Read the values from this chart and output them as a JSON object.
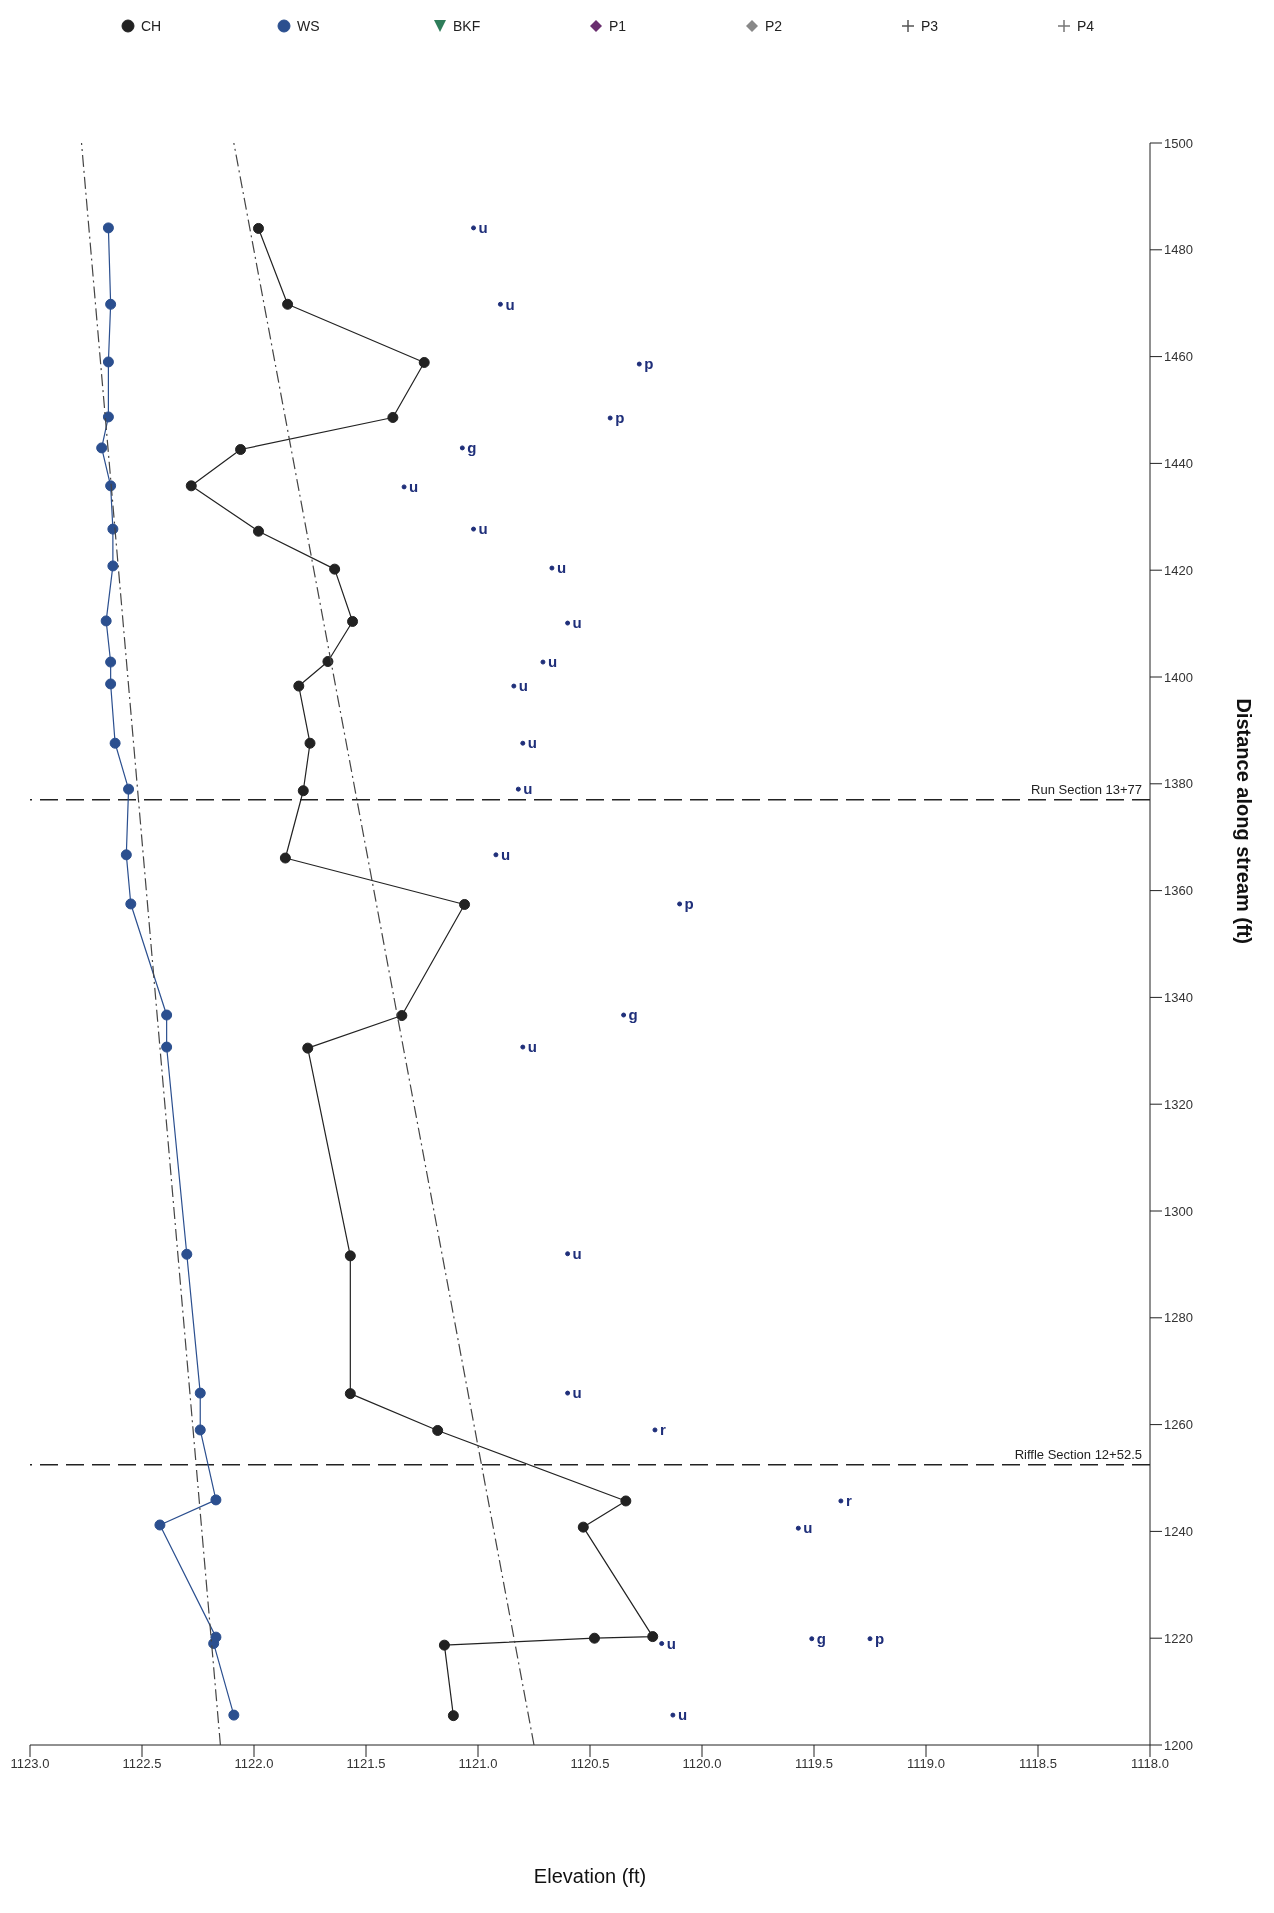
{
  "chart_data": {
    "type": "line",
    "xlabel": "Elevation (ft)",
    "ylabel": "Distance along stream (ft)",
    "xlim": [
      1123,
      1118
    ],
    "xticks": [
      {
        "value": 1123,
        "label": "1123.0"
      },
      {
        "value": 1122.5,
        "label": "1122.5"
      },
      {
        "value": 1122,
        "label": "1122.0"
      },
      {
        "value": 1121.5,
        "label": "1121.5"
      },
      {
        "value": 1121,
        "label": "1121.0"
      },
      {
        "value": 1120.5,
        "label": "1120.5"
      },
      {
        "value": 1120,
        "label": "1120.0"
      },
      {
        "value": 1119.5,
        "label": "1119.5"
      },
      {
        "value": 1119,
        "label": "1119.0"
      },
      {
        "value": 1118.5,
        "label": "1118.5"
      },
      {
        "value": 1118,
        "label": "1118.0"
      }
    ],
    "ylim": [
      1200,
      1500
    ],
    "yticks": [
      1200,
      1220,
      1240,
      1260,
      1280,
      1300,
      1320,
      1340,
      1360,
      1380,
      1400,
      1420,
      1440,
      1460,
      1480,
      1500
    ],
    "legend": "top",
    "series": [
      {
        "name": "CH",
        "color": "#222222",
        "marker": "circle",
        "line_style": "solid",
        "values": [
          1205.5,
          1218.7,
          1220,
          1220.3,
          1240.8,
          1245.7,
          1258.9,
          1265.8,
          1291.6,
          1330.5,
          1336.6,
          1357.4,
          1366.1,
          1378.7,
          1387.6,
          1398.3,
          1402.9,
          1410.4,
          1420.2,
          1427.3,
          1435.8,
          1442.6,
          1448.6,
          1458.9,
          1469.8,
          1484
        ],
        "x": [
          1121.11,
          1121.15,
          1120.48,
          1120.22,
          1120.53,
          1120.34,
          1121.18,
          1121.57,
          1121.57,
          1121.76,
          1121.34,
          1121.06,
          1121.86,
          1121.78,
          1121.75,
          1121.8,
          1121.67,
          1121.56,
          1121.64,
          1121.98,
          1122.28,
          1122.06,
          1121.38,
          1121.24,
          1121.85,
          1121.98
        ]
      },
      {
        "name": "WS",
        "color": "#2b4f8f",
        "marker": "circle",
        "line_style": "solid",
        "values": [
          1205.6,
          1219,
          1220.2,
          1241.2,
          1245.9,
          1259,
          1265.9,
          1291.9,
          1330.7,
          1336.7,
          1357.5,
          1366.7,
          1379,
          1387.6,
          1398.7,
          1402.8,
          1410.5,
          1420.8,
          1427.7,
          1435.8,
          1442.9,
          1448.7,
          1459,
          1469.8,
          1484.1
        ],
        "x": [
          1122.09,
          1122.18,
          1122.17,
          1122.42,
          1122.17,
          1122.24,
          1122.24,
          1122.3,
          1122.39,
          1122.39,
          1122.55,
          1122.57,
          1122.56,
          1122.62,
          1122.64,
          1122.64,
          1122.66,
          1122.63,
          1122.63,
          1122.64,
          1122.68,
          1122.65,
          1122.65,
          1122.64,
          1122.65
        ]
      },
      {
        "name": "BKF",
        "color": "#2e7d5a",
        "marker": "triangle"
      },
      {
        "name": "P1",
        "color": "#6a2f6f",
        "marker": "diamond"
      },
      {
        "name": "P2",
        "color": "#888888",
        "marker": "diamond"
      },
      {
        "name": "P3",
        "color": "#555555",
        "marker": "cross"
      },
      {
        "name": "P4",
        "color": "#777777",
        "marker": "cross"
      },
      {
        "color": "#444444",
        "marker": "none",
        "line_style": "dashed",
        "values": [
          1200,
          1500
        ],
        "x": [
          1122.15,
          1122.77
        ]
      },
      {
        "color": "#444444",
        "marker": "none",
        "line_style": "dashed",
        "values": [
          1200,
          1500
        ],
        "x": [
          1120.75,
          1122.09
        ]
      },
      {
        "type": "scatter",
        "color": "#1f2f7a",
        "marker": "circle",
        "values": [
          1205.6,
          1219,
          1219.9,
          1219.9,
          1240.6,
          1245.7,
          1259,
          1265.9,
          1292,
          1330.7,
          1336.7,
          1357.5,
          1366.7,
          1379,
          1387.6,
          1398.3,
          1402.8,
          1410.1,
          1420.4,
          1427.7,
          1435.6,
          1442.9,
          1448.5,
          1458.6,
          1469.8,
          1484.1
        ],
        "x": [
          1120.13,
          1120.18,
          1119.51,
          1119.25,
          1119.57,
          1119.38,
          1120.21,
          1120.6,
          1120.6,
          1120.8,
          1120.35,
          1120.1,
          1120.92,
          1120.82,
          1120.8,
          1120.84,
          1120.71,
          1120.6,
          1120.67,
          1121.02,
          1121.33,
          1121.07,
          1120.41,
          1120.28,
          1120.9,
          1121.02
        ],
        "value_labels": [
          "u",
          "u",
          "g",
          "p",
          "u",
          "r",
          "r",
          "u",
          "u",
          "u",
          "g",
          "p",
          "u",
          "u",
          "u",
          "u",
          "u",
          "u",
          "u",
          "u",
          "u",
          "g",
          "p",
          "p",
          "u",
          "u"
        ]
      }
    ],
    "ref_lines": [
      {
        "axis": "y",
        "value": 1252.5,
        "label": "Riffle Section 12+52.5",
        "color": "#222222",
        "line_style": "dashed"
      },
      {
        "axis": "y",
        "value": 1377,
        "label": "Run Section 13+77",
        "color": "#222222",
        "line_style": "dashed"
      }
    ]
  }
}
